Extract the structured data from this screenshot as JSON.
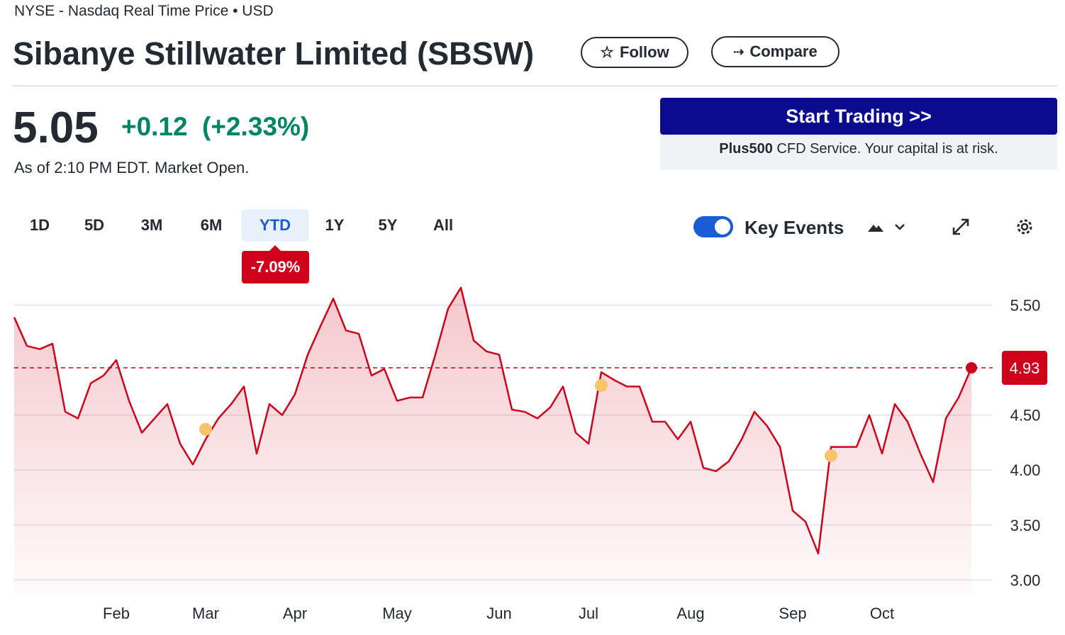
{
  "header": {
    "exchange": "NYSE - Nasdaq Real Time Price • USD",
    "title": "Sibanye Stillwater Limited (SBSW)",
    "follow": "Follow",
    "compare": "Compare"
  },
  "quote": {
    "price": "5.05",
    "change": "+0.12",
    "change_pct": "(+2.33%)",
    "as_of": "As of 2:10 PM EDT. Market Open."
  },
  "ad": {
    "button": "Start Trading >>",
    "brand": "Plus500",
    "disclaimer": "CFD Service. Your capital is at risk."
  },
  "ranges": [
    "1D",
    "5D",
    "3M",
    "6M",
    "YTD",
    "1Y",
    "5Y",
    "All"
  ],
  "ytd_change": "-7.09%",
  "chart_data": {
    "type": "line",
    "categories": [
      null,
      null,
      null,
      null,
      null,
      null,
      null,
      null,
      "Feb",
      null,
      null,
      null,
      null,
      null,
      null,
      "Mar",
      null,
      null,
      null,
      null,
      null,
      null,
      "Apr",
      null,
      null,
      null,
      null,
      null,
      null,
      null,
      "May",
      null,
      null,
      null,
      null,
      null,
      null,
      null,
      "Jun",
      null,
      null,
      null,
      null,
      null,
      null,
      "Jul",
      null,
      null,
      null,
      null,
      null,
      null,
      null,
      "Aug",
      null,
      null,
      null,
      null,
      null,
      null,
      null,
      "Sep",
      null,
      null,
      null,
      null,
      null,
      null,
      "Oct",
      null,
      null,
      null,
      null,
      null,
      null,
      null
    ],
    "series": [
      {
        "name": "SBSW",
        "color": "#d0021b",
        "values": [
          5.39,
          5.13,
          5.1,
          5.15,
          4.53,
          4.47,
          4.79,
          4.86,
          5.0,
          4.63,
          4.34,
          4.47,
          4.6,
          4.24,
          4.05,
          4.28,
          4.47,
          4.6,
          4.76,
          4.15,
          4.6,
          4.5,
          4.69,
          5.05,
          5.31,
          5.56,
          5.27,
          5.24,
          4.86,
          4.92,
          4.63,
          4.66,
          4.66,
          5.05,
          5.47,
          5.66,
          5.18,
          5.08,
          5.05,
          4.55,
          4.53,
          4.47,
          4.57,
          4.76,
          4.34,
          4.24,
          4.89,
          4.82,
          4.76,
          4.76,
          4.44,
          4.44,
          4.28,
          4.44,
          4.02,
          3.99,
          4.08,
          4.28,
          4.53,
          4.4,
          4.21,
          3.63,
          3.53,
          3.24,
          4.21,
          4.21,
          4.21,
          4.5,
          4.15,
          4.6,
          4.44,
          4.15,
          3.89,
          4.47,
          4.66,
          4.93
        ]
      },
      {
        "name": "Key Events",
        "color": "#f6c46a",
        "values": [
          null,
          null,
          null,
          null,
          null,
          null,
          null,
          null,
          null,
          null,
          null,
          null,
          null,
          null,
          null,
          4.37,
          null,
          null,
          null,
          null,
          null,
          null,
          null,
          null,
          null,
          null,
          null,
          null,
          null,
          null,
          null,
          null,
          null,
          null,
          null,
          null,
          null,
          null,
          null,
          null,
          null,
          null,
          null,
          null,
          null,
          null,
          4.77,
          null,
          null,
          null,
          null,
          null,
          null,
          null,
          null,
          null,
          null,
          null,
          null,
          null,
          null,
          null,
          null,
          null,
          4.13,
          null,
          null,
          null,
          null,
          null,
          null,
          null,
          null,
          null,
          null,
          null
        ]
      }
    ],
    "reference_value": 4.93,
    "ylim": [
      2.86,
      5.73
    ],
    "yticks": [
      {
        "value": 3,
        "label": "3.00"
      },
      {
        "value": 3.5,
        "label": "3.50"
      },
      {
        "value": 4,
        "label": "4.00"
      },
      {
        "value": 4.5,
        "label": "4.50"
      },
      {
        "value": 5.5,
        "label": "5.50"
      }
    ],
    "grid": true
  }
}
